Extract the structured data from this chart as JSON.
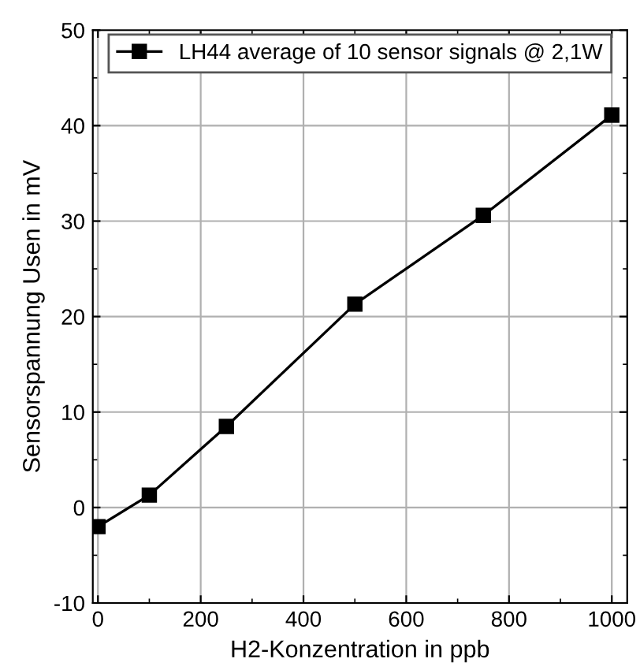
{
  "chart_data": {
    "type": "line",
    "xlabel": "H2-Konzentration in ppb",
    "ylabel": "Sensorspannung Usen in mV",
    "x": [
      0,
      100,
      250,
      500,
      750,
      1000
    ],
    "series": [
      {
        "name": "LH44 average of 10 sensor signals @ 2,1W",
        "color": "#000000",
        "values": [
          -2.0,
          1.3,
          8.5,
          21.3,
          30.6,
          41.1
        ]
      }
    ],
    "xlim": [
      -10,
      1030
    ],
    "xticks": [
      0,
      200,
      400,
      600,
      800,
      1000
    ],
    "ylim": [
      -10,
      50
    ],
    "yticks": [
      -10,
      0,
      10,
      20,
      30,
      40,
      50
    ],
    "grid": true,
    "legend": "top",
    "marker": "square",
    "line_style": "solid"
  }
}
